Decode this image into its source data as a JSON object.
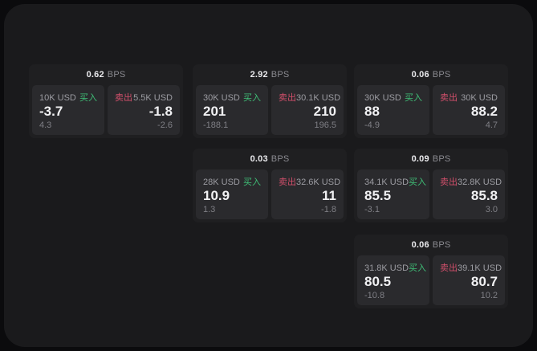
{
  "labels": {
    "bps": "BPS",
    "buy": "买入",
    "sell": "卖出"
  },
  "colors": {
    "page_bg": "#0b0b0d",
    "panel_bg": "#1a1a1c",
    "card_bg": "#1f1f21",
    "subcard_bg": "#2a2a2d",
    "buy_green": "#3fbf77",
    "sell_red": "#d24f6b"
  },
  "cards": [
    {
      "bps": "0.62",
      "buy": {
        "notional": "10K USD",
        "value": "-3.7",
        "delta": "4.3"
      },
      "sell": {
        "notional": "5.5K USD",
        "value": "-1.8",
        "delta": "-2.6"
      }
    },
    {
      "bps": "2.92",
      "buy": {
        "notional": "30K USD",
        "value": "201",
        "delta": "-188.1"
      },
      "sell": {
        "notional": "30.1K USD",
        "value": "210",
        "delta": "196.5"
      }
    },
    {
      "bps": "0.06",
      "buy": {
        "notional": "30K USD",
        "value": "88",
        "delta": "-4.9"
      },
      "sell": {
        "notional": "30K USD",
        "value": "88.2",
        "delta": "4.7"
      }
    },
    {
      "bps": "0.03",
      "buy": {
        "notional": "28K USD",
        "value": "10.9",
        "delta": "1.3"
      },
      "sell": {
        "notional": "32.6K USD",
        "value": "11",
        "delta": "-1.8"
      }
    },
    {
      "bps": "0.09",
      "buy": {
        "notional": "34.1K USD",
        "value": "85.5",
        "delta": "-3.1"
      },
      "sell": {
        "notional": "32.8K USD",
        "value": "85.8",
        "delta": "3.0"
      }
    },
    {
      "bps": "0.06",
      "buy": {
        "notional": "31.8K USD",
        "value": "80.5",
        "delta": "-10.8"
      },
      "sell": {
        "notional": "39.1K USD",
        "value": "80.7",
        "delta": "10.2"
      }
    }
  ]
}
